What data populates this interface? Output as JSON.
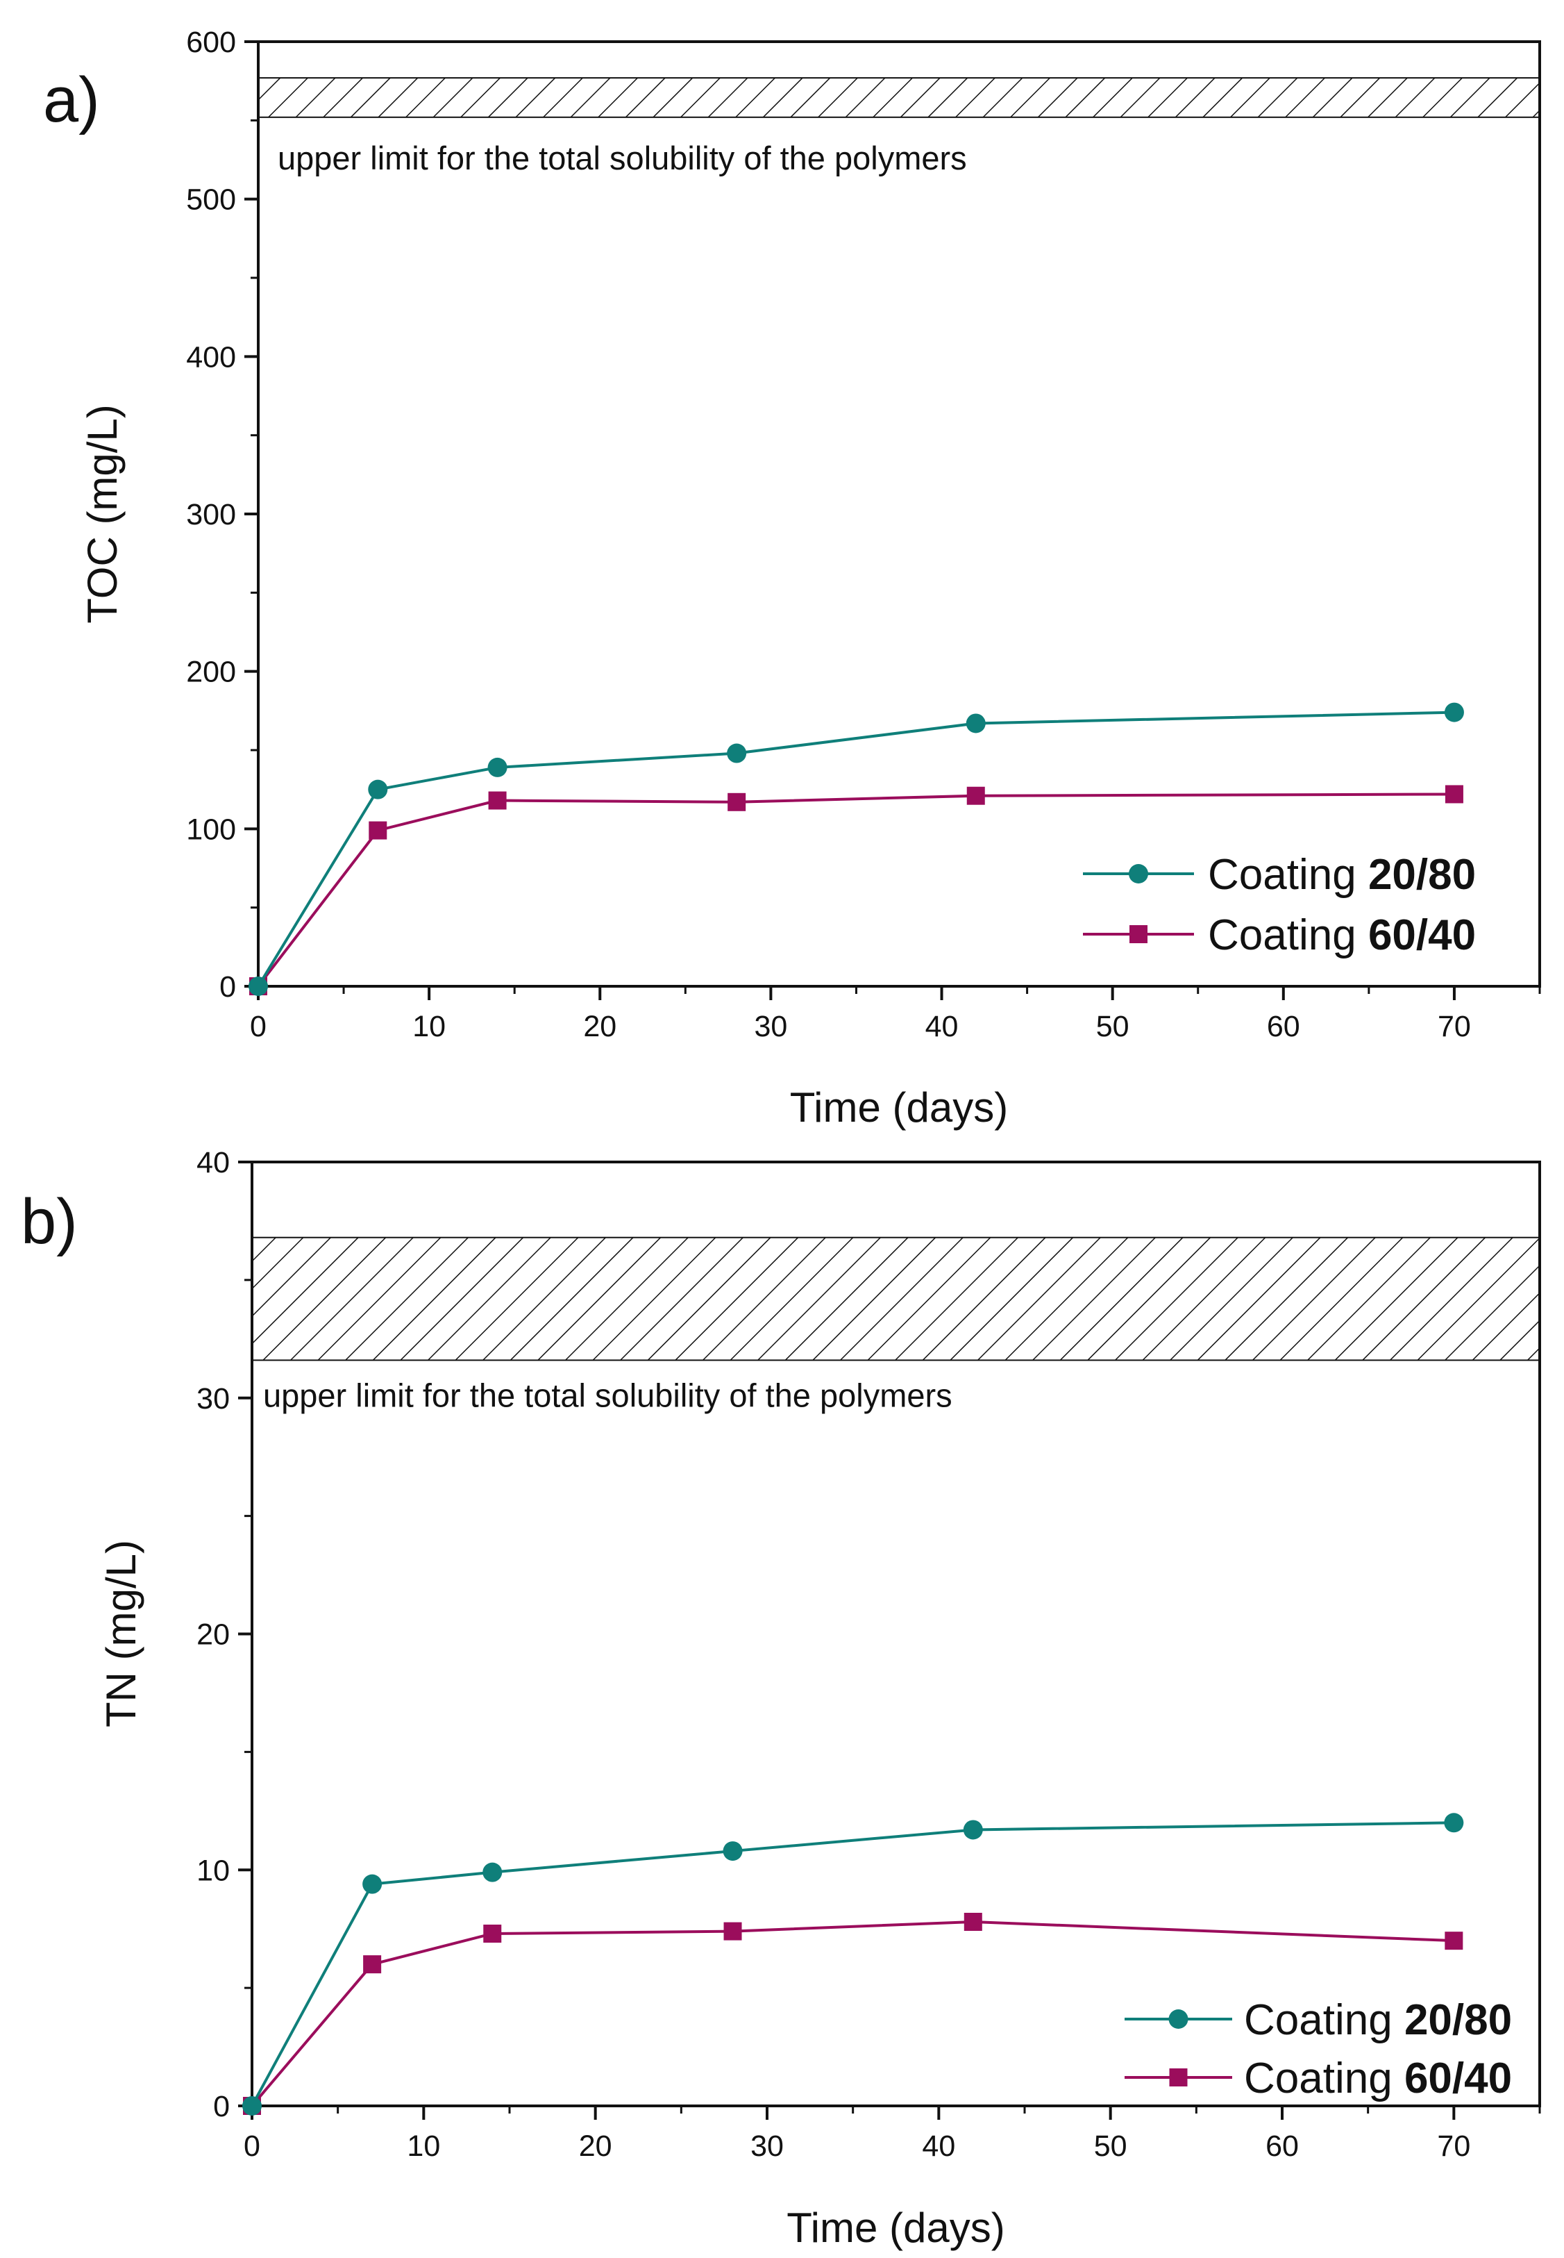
{
  "chart_data": [
    {
      "panel_label": "a)",
      "type": "line",
      "xlabel": "Time (days)",
      "ylabel": "TOC (mg/L)",
      "xlim": [
        0,
        75
      ],
      "ylim": [
        0,
        600
      ],
      "x_ticks": [
        0,
        10,
        20,
        30,
        40,
        50,
        60,
        70
      ],
      "y_ticks": [
        0,
        100,
        200,
        300,
        400,
        500,
        600
      ],
      "x": [
        0,
        7,
        14,
        28,
        42,
        70
      ],
      "series": [
        {
          "name": "Coating 20/80",
          "prefix": "Coating ",
          "bold": "20/80",
          "marker": "circle",
          "color": "#0f7f7a",
          "values": [
            0,
            125,
            139,
            148,
            167,
            174
          ]
        },
        {
          "name": "Coating 60/40",
          "prefix": "Coating ",
          "bold": "60/40",
          "marker": "square",
          "color": "#9b0d5c",
          "values": [
            0,
            99,
            118,
            117,
            121,
            122
          ]
        }
      ],
      "band": {
        "label": "upper limit for the total solubility of the polymers",
        "y_range": [
          552,
          577
        ]
      },
      "legend_position": "bottom-right"
    },
    {
      "panel_label": "b)",
      "type": "line",
      "xlabel": "Time (days)",
      "ylabel": "TN (mg/L)",
      "xlim": [
        0,
        75
      ],
      "ylim": [
        0,
        40
      ],
      "x_ticks": [
        0,
        10,
        20,
        30,
        40,
        50,
        60,
        70
      ],
      "y_ticks": [
        0,
        10,
        20,
        30,
        40
      ],
      "x": [
        0,
        7,
        14,
        28,
        42,
        70
      ],
      "series": [
        {
          "name": "Coating 20/80",
          "prefix": "Coating ",
          "bold": "20/80",
          "marker": "circle",
          "color": "#0f7f7a",
          "values": [
            0,
            9.4,
            9.9,
            10.8,
            11.7,
            12.0
          ]
        },
        {
          "name": "Coating 60/40",
          "prefix": "Coating ",
          "bold": "60/40",
          "marker": "square",
          "color": "#9b0d5c",
          "values": [
            0,
            6.0,
            7.3,
            7.4,
            7.8,
            7.0
          ]
        }
      ],
      "band": {
        "label": "upper limit for the total solubility of the polymers",
        "y_range": [
          31.6,
          36.8
        ]
      },
      "legend_position": "bottom-right"
    }
  ]
}
